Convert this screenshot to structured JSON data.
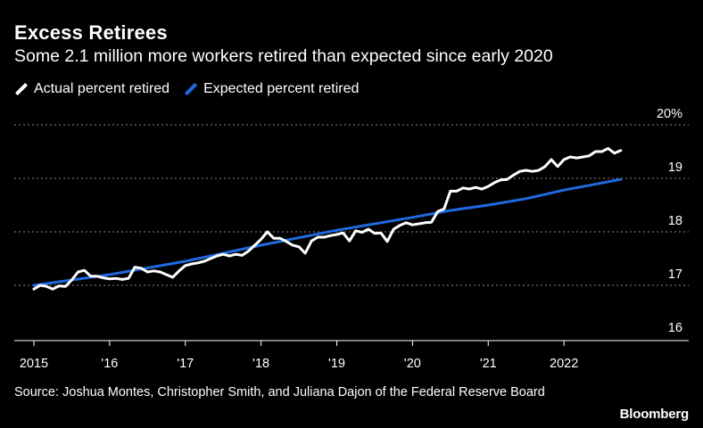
{
  "header": {
    "title": "Excess Retirees",
    "subtitle": "Some 2.1 million more workers retired than expected since early 2020"
  },
  "legend": [
    {
      "label": "Actual percent retired",
      "color": "#ffffff"
    },
    {
      "label": "Expected percent retired",
      "color": "#1f6ae0"
    }
  ],
  "footer": {
    "source": "Source: Joshua Montes, Christopher Smith, and Juliana Dajon of the Federal Reserve Board",
    "brand": "Bloomberg"
  },
  "chart_data": {
    "type": "line",
    "ylim": [
      16,
      20
    ],
    "xlim": [
      2015,
      2023.0
    ],
    "y_ticks": [
      {
        "value": 20,
        "label": "20%"
      },
      {
        "value": 19,
        "label": "19"
      },
      {
        "value": 18,
        "label": "18"
      },
      {
        "value": 17,
        "label": "17"
      },
      {
        "value": 16,
        "label": "16"
      }
    ],
    "x_ticks": [
      {
        "value": 2015,
        "label": "2015"
      },
      {
        "value": 2016,
        "label": "'16"
      },
      {
        "value": 2017,
        "label": "'17"
      },
      {
        "value": 2018,
        "label": "'18"
      },
      {
        "value": 2019,
        "label": "'19"
      },
      {
        "value": 2020,
        "label": "'20"
      },
      {
        "value": 2021,
        "label": "'21"
      },
      {
        "value": 2022,
        "label": "2022"
      }
    ],
    "grid": true,
    "series": [
      {
        "name": "Actual percent retired",
        "color": "#ffffff",
        "x": [
          2015.0,
          2015.083,
          2015.167,
          2015.25,
          2015.333,
          2015.417,
          2015.5,
          2015.583,
          2015.667,
          2015.75,
          2015.833,
          2015.917,
          2016.0,
          2016.083,
          2016.167,
          2016.25,
          2016.333,
          2016.417,
          2016.5,
          2016.583,
          2016.667,
          2016.75,
          2016.833,
          2016.917,
          2017.0,
          2017.083,
          2017.167,
          2017.25,
          2017.333,
          2017.417,
          2017.5,
          2017.583,
          2017.667,
          2017.75,
          2017.833,
          2017.917,
          2018.0,
          2018.083,
          2018.167,
          2018.25,
          2018.333,
          2018.417,
          2018.5,
          2018.583,
          2018.667,
          2018.75,
          2018.833,
          2018.917,
          2019.0,
          2019.083,
          2019.167,
          2019.25,
          2019.333,
          2019.417,
          2019.5,
          2019.583,
          2019.667,
          2019.75,
          2019.833,
          2019.917,
          2020.0,
          2020.083,
          2020.167,
          2020.25,
          2020.333,
          2020.417,
          2020.5,
          2020.583,
          2020.667,
          2020.75,
          2020.833,
          2020.917,
          2021.0,
          2021.083,
          2021.167,
          2021.25,
          2021.333,
          2021.417,
          2021.5,
          2021.583,
          2021.667,
          2021.75,
          2021.833,
          2021.917,
          2022.0,
          2022.083,
          2022.167,
          2022.25,
          2022.333,
          2022.417,
          2022.5,
          2022.583,
          2022.667,
          2022.75
        ],
        "values": [
          16.93,
          17.0,
          16.98,
          16.93,
          16.99,
          16.98,
          17.1,
          17.25,
          17.28,
          17.17,
          17.17,
          17.14,
          17.12,
          17.13,
          17.11,
          17.13,
          17.34,
          17.32,
          17.25,
          17.27,
          17.25,
          17.2,
          17.15,
          17.27,
          17.37,
          17.4,
          17.42,
          17.45,
          17.5,
          17.55,
          17.58,
          17.55,
          17.58,
          17.56,
          17.64,
          17.75,
          17.86,
          18.0,
          17.88,
          17.88,
          17.82,
          17.75,
          17.72,
          17.6,
          17.83,
          17.9,
          17.9,
          17.93,
          17.95,
          17.98,
          17.83,
          18.02,
          17.99,
          18.05,
          17.97,
          17.98,
          17.82,
          18.05,
          18.12,
          18.17,
          18.13,
          18.15,
          18.17,
          18.18,
          18.38,
          18.43,
          18.76,
          18.76,
          18.82,
          18.8,
          18.83,
          18.8,
          18.85,
          18.92,
          18.97,
          18.98,
          19.06,
          19.13,
          19.15,
          19.13,
          19.15,
          19.22,
          19.35,
          19.22,
          19.35,
          19.4,
          19.38,
          19.4,
          19.42,
          19.5,
          19.5,
          19.56,
          19.47,
          19.52
        ]
      },
      {
        "name": "Expected percent retired",
        "color": "#1f6ae0",
        "x": [
          2015.0,
          2016.0,
          2017.0,
          2018.0,
          2019.0,
          2020.0,
          2020.5,
          2021.0,
          2021.5,
          2022.0,
          2022.75
        ],
        "values": [
          17.0,
          17.2,
          17.45,
          17.75,
          18.03,
          18.27,
          18.4,
          18.5,
          18.62,
          18.78,
          18.98
        ]
      }
    ]
  }
}
